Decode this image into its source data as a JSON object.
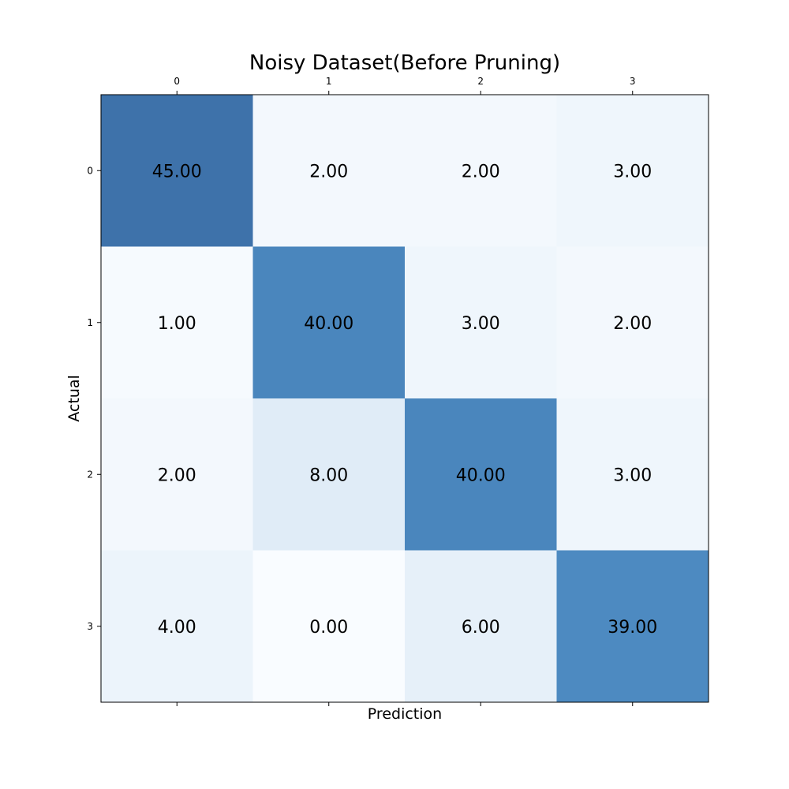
{
  "chart_data": {
    "type": "heatmap",
    "title": "Noisy Dataset(Before Pruning)",
    "xlabel": "Prediction",
    "ylabel": "Actual",
    "x_categories": [
      "0",
      "1",
      "2",
      "3"
    ],
    "y_categories": [
      "0",
      "1",
      "2",
      "3"
    ],
    "values": [
      [
        45.0,
        2.0,
        2.0,
        3.0
      ],
      [
        1.0,
        40.0,
        3.0,
        2.0
      ],
      [
        2.0,
        8.0,
        40.0,
        3.0
      ],
      [
        4.0,
        0.0,
        6.0,
        39.0
      ]
    ],
    "value_format": "0.00",
    "colormap": "Blues",
    "color_range": [
      0,
      50
    ],
    "colors": {
      "low": "#f7fbff",
      "high": "#08306b"
    },
    "grid": false,
    "x_tick_position": "top"
  }
}
